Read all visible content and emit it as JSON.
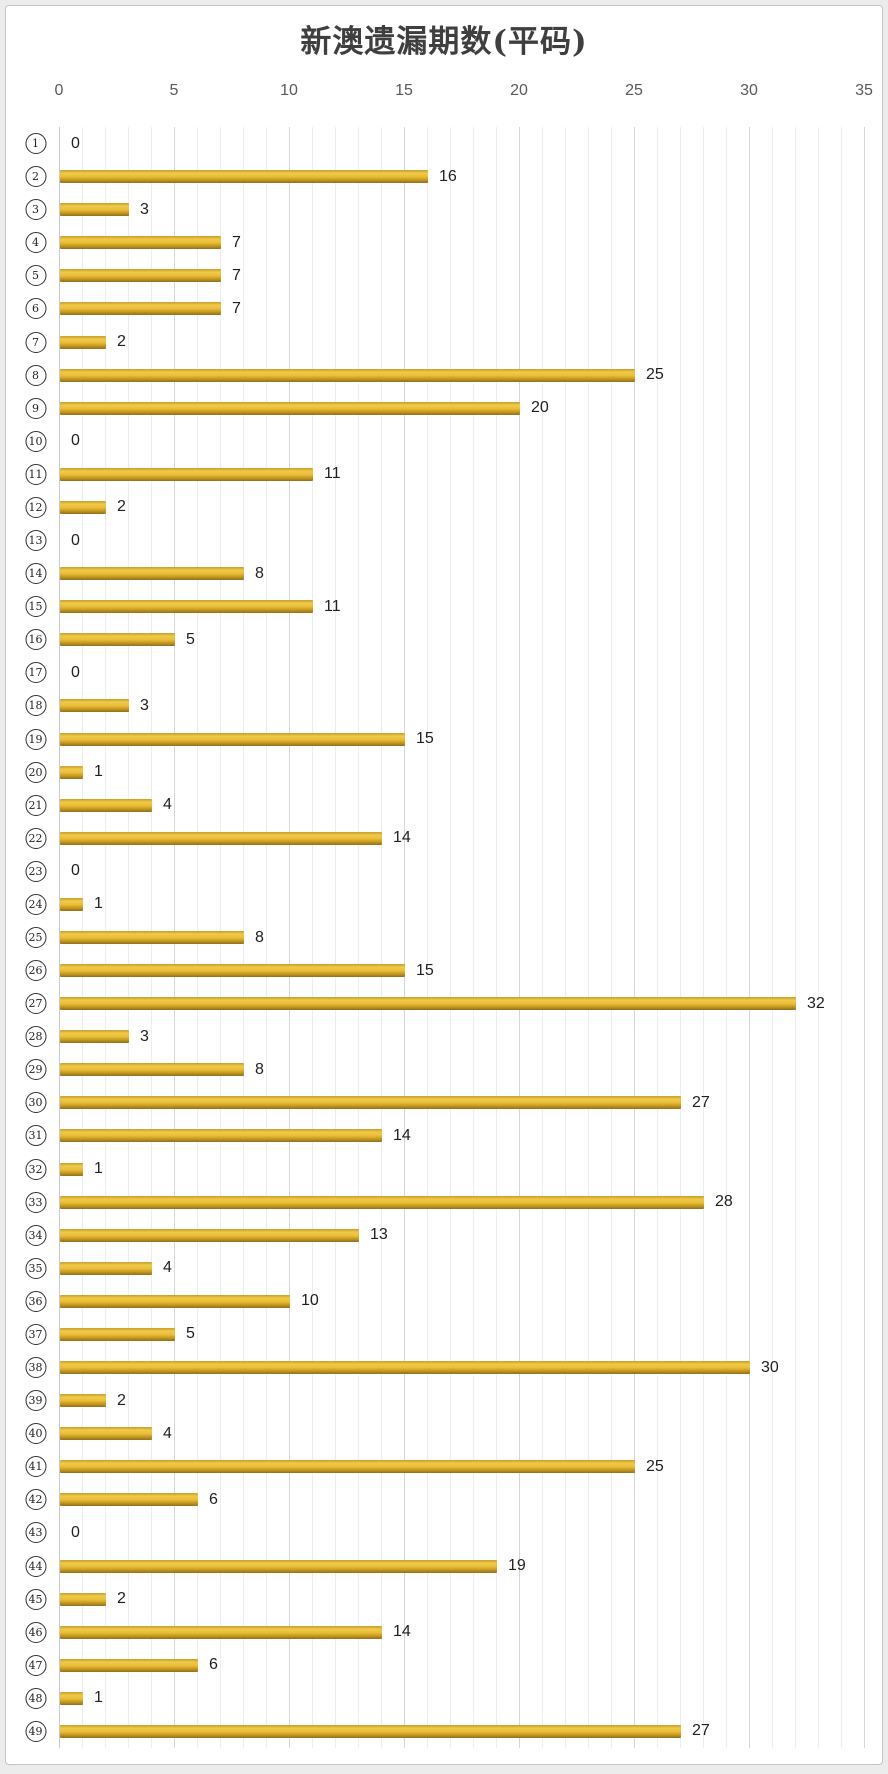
{
  "chart_data": {
    "type": "bar",
    "orientation": "horizontal",
    "title": "新澳遗漏期数(平码)",
    "categories": [
      "1",
      "2",
      "3",
      "4",
      "5",
      "6",
      "7",
      "8",
      "9",
      "10",
      "11",
      "12",
      "13",
      "14",
      "15",
      "16",
      "17",
      "18",
      "19",
      "20",
      "21",
      "22",
      "23",
      "24",
      "25",
      "26",
      "27",
      "28",
      "29",
      "30",
      "31",
      "32",
      "33",
      "34",
      "35",
      "36",
      "37",
      "38",
      "39",
      "40",
      "41",
      "42",
      "43",
      "44",
      "45",
      "46",
      "47",
      "48",
      "49"
    ],
    "category_style": "circled-number",
    "values": [
      0,
      16,
      3,
      7,
      7,
      7,
      2,
      25,
      20,
      0,
      11,
      2,
      0,
      8,
      11,
      5,
      0,
      3,
      15,
      1,
      4,
      14,
      0,
      1,
      8,
      15,
      32,
      3,
      8,
      27,
      14,
      1,
      28,
      13,
      4,
      10,
      5,
      30,
      2,
      4,
      25,
      6,
      0,
      19,
      2,
      14,
      6,
      1,
      27
    ],
    "value_labels": "right-of-bar",
    "xlabel": "",
    "ylabel": "",
    "xlim": [
      0,
      35
    ],
    "x_ticks": [
      0,
      5,
      10,
      15,
      20,
      25,
      30,
      35
    ],
    "grid": {
      "minor_step": 1,
      "major_step": 5,
      "horizontal": "off"
    },
    "legend": "none"
  },
  "colors": {
    "title_text": "#3f3f3f",
    "tick_text": "#595959",
    "value_text": "#1f1f1f",
    "gridline_minor": "#ededed",
    "gridline_major": "#d6d6d6",
    "axis_line": "#c9c9c9",
    "bar_gradient": [
      "#c59d2a",
      "#f0ca48",
      "#e8bd37",
      "#c2951f",
      "#8f701a"
    ],
    "canvas_bg": "#ffffff",
    "canvas_border": "#c4c4c4"
  }
}
